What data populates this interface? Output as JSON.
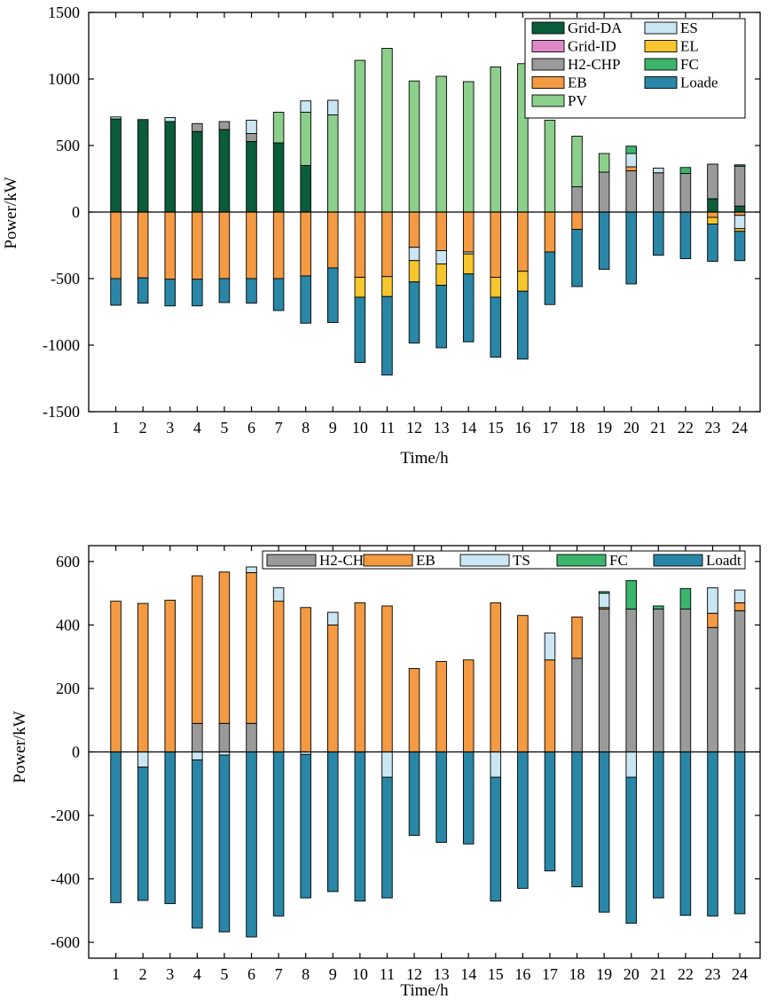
{
  "chart_data": [
    {
      "type": "bar",
      "stacked": true,
      "title": "",
      "xlabel": "Time/h",
      "ylabel": "Power/kW",
      "categories": [
        "1",
        "2",
        "3",
        "4",
        "5",
        "6",
        "7",
        "8",
        "9",
        "10",
        "11",
        "12",
        "13",
        "14",
        "15",
        "16",
        "17",
        "18",
        "19",
        "20",
        "21",
        "22",
        "23",
        "24"
      ],
      "ylim": [
        -1500,
        1500
      ],
      "yticks": [
        -1500,
        -1000,
        -500,
        0,
        500,
        1000,
        1500
      ],
      "legend": "top-right",
      "series": [
        {
          "name": "Grid-DA",
          "color": "#0a5c3a",
          "values": [
            700,
            695,
            680,
            605,
            620,
            530,
            520,
            350,
            0,
            0,
            0,
            0,
            0,
            0,
            0,
            0,
            0,
            0,
            0,
            0,
            0,
            0,
            100,
            45
          ]
        },
        {
          "name": "Grid-ID",
          "color": "#e089c8",
          "values": [
            0,
            0,
            0,
            0,
            0,
            0,
            0,
            0,
            0,
            0,
            0,
            0,
            0,
            0,
            0,
            0,
            0,
            0,
            0,
            0,
            0,
            0,
            0,
            0
          ]
        },
        {
          "name": "H2-CHP",
          "color": "#9a9a9a",
          "values": [
            0,
            0,
            0,
            60,
            60,
            60,
            0,
            0,
            0,
            0,
            0,
            0,
            0,
            0,
            0,
            0,
            0,
            190,
            300,
            310,
            295,
            290,
            260,
            300
          ]
        },
        {
          "name": "EB",
          "color": "#f39a42",
          "values": [
            -500,
            -495,
            -505,
            -505,
            -500,
            -500,
            -500,
            -480,
            -420,
            -490,
            -485,
            -265,
            -290,
            -300,
            -490,
            -445,
            -300,
            -130,
            0,
            30,
            0,
            0,
            -40,
            -25
          ]
        },
        {
          "name": "PV",
          "color": "#8ccf8c",
          "values": [
            0,
            0,
            0,
            0,
            0,
            0,
            230,
            400,
            730,
            1140,
            1230,
            985,
            1020,
            980,
            1090,
            1115,
            690,
            380,
            140,
            0,
            0,
            0,
            0,
            0
          ]
        },
        {
          "name": "ES",
          "color": "#c9e6f2",
          "values": [
            15,
            0,
            30,
            0,
            0,
            100,
            0,
            85,
            110,
            0,
            0,
            -100,
            -100,
            -15,
            0,
            0,
            0,
            0,
            0,
            100,
            35,
            0,
            0,
            -100
          ]
        },
        {
          "name": "EL",
          "color": "#f7c62e",
          "values": [
            0,
            0,
            0,
            0,
            0,
            0,
            0,
            0,
            0,
            -150,
            -150,
            -160,
            -160,
            -150,
            -150,
            -150,
            0,
            0,
            0,
            0,
            0,
            0,
            -50,
            -20
          ]
        },
        {
          "name": "FC",
          "color": "#3bb56c",
          "values": [
            0,
            0,
            0,
            0,
            0,
            0,
            0,
            0,
            0,
            0,
            0,
            0,
            0,
            0,
            0,
            0,
            0,
            0,
            0,
            55,
            0,
            45,
            0,
            10
          ]
        },
        {
          "name": "Loade",
          "color": "#2a86a6",
          "values": [
            -200,
            -190,
            -200,
            -200,
            -180,
            -185,
            -240,
            -355,
            -410,
            -490,
            -590,
            -460,
            -470,
            -510,
            -450,
            -510,
            -395,
            -430,
            -430,
            -540,
            -325,
            -350,
            -280,
            -220
          ]
        }
      ]
    },
    {
      "type": "bar",
      "stacked": true,
      "title": "",
      "xlabel": "Time/h",
      "ylabel": "Power/kW",
      "categories": [
        "1",
        "2",
        "3",
        "4",
        "5",
        "6",
        "7",
        "8",
        "9",
        "10",
        "11",
        "12",
        "13",
        "14",
        "15",
        "16",
        "17",
        "18",
        "19",
        "20",
        "21",
        "22",
        "23",
        "24"
      ],
      "ylim": [
        -650,
        650
      ],
      "yticks": [
        -600,
        -400,
        -200,
        0,
        200,
        400,
        600
      ],
      "legend": "top",
      "series": [
        {
          "name": "H2-CHP",
          "color": "#9a9a9a",
          "values": [
            0,
            0,
            0,
            90,
            90,
            90,
            0,
            0,
            0,
            0,
            0,
            0,
            0,
            0,
            0,
            0,
            0,
            295,
            450,
            450,
            450,
            450,
            392,
            445
          ]
        },
        {
          "name": "EB",
          "color": "#f39a42",
          "values": [
            475,
            468,
            478,
            465,
            477,
            475,
            475,
            455,
            400,
            470,
            460,
            263,
            285,
            290,
            470,
            430,
            290,
            130,
            5,
            0,
            0,
            0,
            45,
            25
          ]
        },
        {
          "name": "TS",
          "color": "#c9e6f2",
          "values": [
            0,
            -48,
            0,
            -25,
            -10,
            18,
            42,
            -8,
            40,
            0,
            -80,
            0,
            0,
            0,
            -80,
            0,
            85,
            0,
            45,
            -80,
            0,
            0,
            80,
            40
          ]
        },
        {
          "name": "FC",
          "color": "#3bb56c",
          "values": [
            0,
            0,
            0,
            0,
            0,
            0,
            0,
            0,
            0,
            0,
            0,
            0,
            0,
            0,
            0,
            0,
            0,
            0,
            5,
            90,
            10,
            65,
            0,
            0
          ]
        },
        {
          "name": "Loadt",
          "color": "#2a86a6",
          "values": [
            -475,
            -420,
            -478,
            -530,
            -557,
            -583,
            -517,
            -452,
            -440,
            -470,
            -380,
            -263,
            -285,
            -290,
            -390,
            -430,
            -375,
            -425,
            -505,
            -460,
            -460,
            -515,
            -517,
            -510
          ]
        }
      ]
    }
  ]
}
